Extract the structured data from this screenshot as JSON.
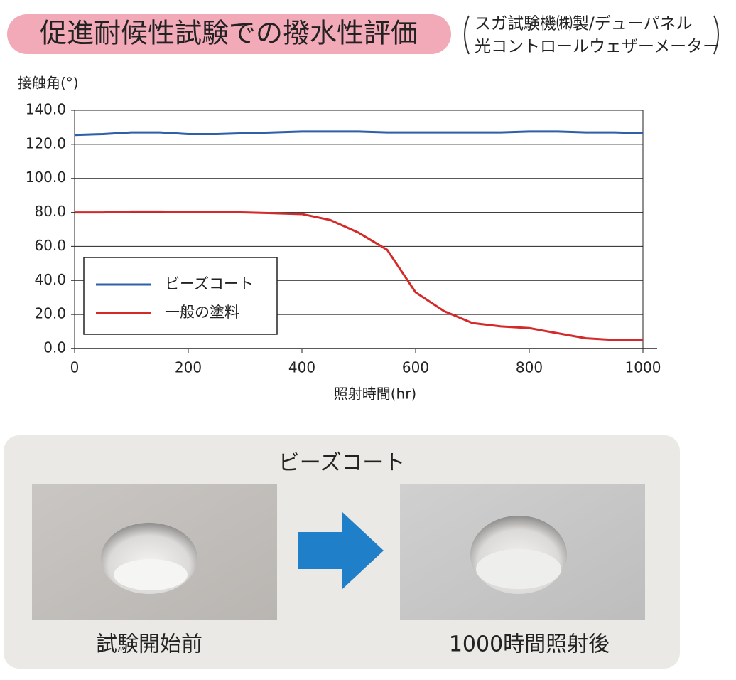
{
  "header": {
    "title": "促進耐候性試験での撥水性評価",
    "subtitle": [
      "スガ試験機㈱製/デューパネル",
      "光コントロールウェザーメーター"
    ]
  },
  "chart_data": {
    "type": "line",
    "y_label": "接触角(°)",
    "x_label": "照射時間(hr)",
    "x": [
      0,
      50,
      100,
      150,
      200,
      250,
      300,
      350,
      400,
      450,
      500,
      550,
      600,
      650,
      700,
      750,
      800,
      850,
      900,
      950,
      1000
    ],
    "series": [
      {
        "name": "ビーズコート",
        "color": "#2e5fa8",
        "values": [
          125.5,
          126,
          127,
          127,
          126,
          126,
          126.5,
          127,
          127.5,
          127.5,
          127.5,
          127,
          127,
          127,
          127,
          127,
          127.5,
          127.5,
          127,
          127,
          126.5
        ]
      },
      {
        "name": "一般の塗料",
        "color": "#d42a2a",
        "values": [
          80,
          80,
          80.5,
          80.5,
          80.3,
          80.3,
          80,
          79.5,
          79,
          75.5,
          68,
          58,
          33,
          22,
          15,
          13,
          12,
          9,
          6,
          5,
          5
        ]
      }
    ],
    "xlim": [
      0,
      1000
    ],
    "xticks": [
      0,
      200,
      400,
      600,
      800,
      1000
    ],
    "ylim": [
      0,
      140
    ],
    "yticks": [
      {
        "value": 0,
        "label": "0.0"
      },
      {
        "value": 20,
        "label": "20.0"
      },
      {
        "value": 40,
        "label": "40.0"
      },
      {
        "value": 60,
        "label": "60.0"
      },
      {
        "value": 80,
        "label": "80.0"
      },
      {
        "value": 100,
        "label": "100.0"
      },
      {
        "value": 120,
        "label": "120.0"
      },
      {
        "value": 140,
        "label": "140.0"
      }
    ],
    "grid": true,
    "legend": "lower-left"
  },
  "photo_panel": {
    "title": "ビーズコート",
    "before": "試験開始前",
    "after": "1000時間照射後"
  }
}
